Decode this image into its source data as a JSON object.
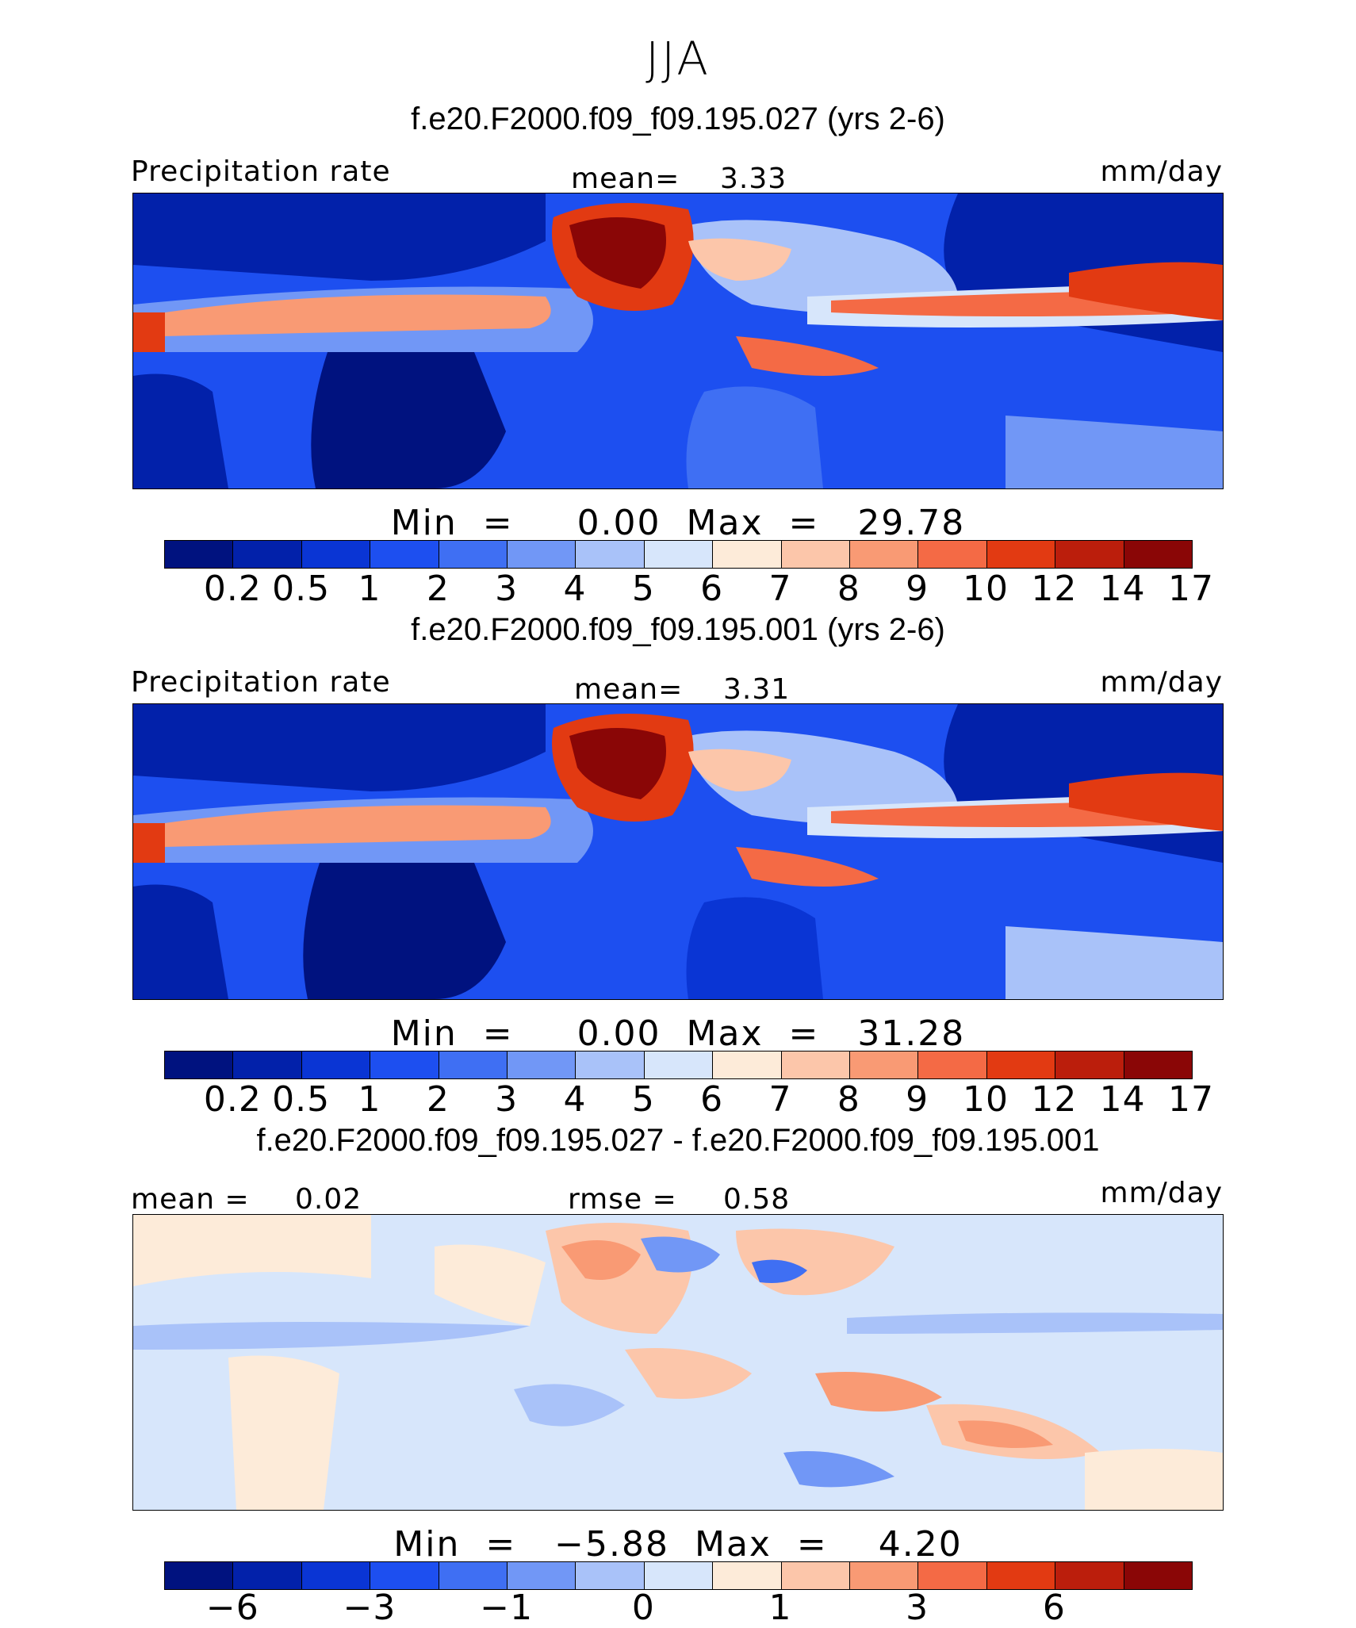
{
  "title": "JJA",
  "colors": {
    "abs_levels": [
      "#00127f",
      "#0221aa",
      "#0a35d4",
      "#1d4ff0",
      "#3f6ff3",
      "#7197f6",
      "#a9c2f9",
      "#d7e6fb",
      "#fdebd9",
      "#fcc6aa",
      "#f99a74",
      "#f46a45",
      "#e23a12",
      "#bb1e0c",
      "#8a0606"
    ],
    "diff_levels": [
      "#00127f",
      "#0221aa",
      "#0a35d4",
      "#1d4ff0",
      "#3f6ff3",
      "#7197f6",
      "#a9c2f9",
      "#d7e6fb",
      "#fdebd9",
      "#fcc6aa",
      "#f99a74",
      "#f46a45",
      "#e23a12",
      "#bb1e0c",
      "#8a0606"
    ]
  },
  "panels": [
    {
      "case": "f.e20.F2000.f09_f09.195.027 (yrs 2-6)",
      "variable": "Precipitation rate",
      "mean_label": "mean=",
      "mean_value": "3.33",
      "units": "mm/day",
      "min_label": "Min  =",
      "min_value": "0.00",
      "max_label": "Max  =",
      "max_value": "29.78",
      "ticks": [
        "0.2",
        "0.5",
        "1",
        "2",
        "3",
        "4",
        "5",
        "6",
        "7",
        "8",
        "9",
        "10",
        "12",
        "14",
        "17"
      ]
    },
    {
      "case": "f.e20.F2000.f09_f09.195.001 (yrs 2-6)",
      "variable": "Precipitation rate",
      "mean_label": "mean=",
      "mean_value": "3.31",
      "units": "mm/day",
      "min_label": "Min  =",
      "min_value": "0.00",
      "max_label": "Max  =",
      "max_value": "31.28",
      "ticks": [
        "0.2",
        "0.5",
        "1",
        "2",
        "3",
        "4",
        "5",
        "6",
        "7",
        "8",
        "9",
        "10",
        "12",
        "14",
        "17"
      ]
    },
    {
      "case": "f.e20.F2000.f09_f09.195.027 - f.e20.F2000.f09_f09.195.001",
      "mean_label": "mean =",
      "mean_value": "0.02",
      "rmse_label": "rmse =",
      "rmse_value": "0.58",
      "units": "mm/day",
      "min_label": "Min  =",
      "min_value": "−5.88",
      "max_label": "Max  =",
      "max_value": "4.20",
      "ticks": [
        "−6",
        "−3",
        "−1",
        "0",
        "1",
        "3",
        "6"
      ]
    }
  ]
}
